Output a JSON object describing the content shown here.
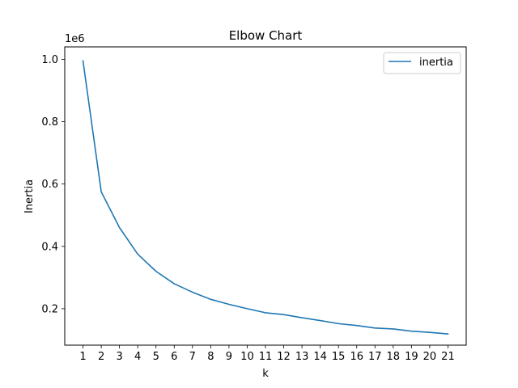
{
  "chart_data": {
    "type": "line",
    "title": "Elbow Chart",
    "xlabel": "k",
    "ylabel": "Inertia",
    "y_offset_label": "1e6",
    "x": [
      1,
      2,
      3,
      4,
      5,
      6,
      7,
      8,
      9,
      10,
      11,
      12,
      13,
      14,
      15,
      16,
      17,
      18,
      19,
      20,
      21
    ],
    "x_tick_labels": [
      "1",
      "2",
      "3",
      "4",
      "5",
      "6",
      "7",
      "8",
      "9",
      "10",
      "11",
      "12",
      "13",
      "14",
      "15",
      "16",
      "17",
      "18",
      "19",
      "20",
      "21"
    ],
    "y_ticks": [
      0.2,
      0.4,
      0.6,
      0.8,
      1.0
    ],
    "y_tick_labels": [
      "0.2",
      "0.4",
      "0.6",
      "0.8",
      "1.0"
    ],
    "ylim": [
      0.083,
      1.04
    ],
    "xlim": [
      0,
      22
    ],
    "series": [
      {
        "name": "inertia",
        "color": "#1f77b4",
        "values": [
          0.995,
          0.575,
          0.46,
          0.375,
          0.32,
          0.28,
          0.253,
          0.23,
          0.214,
          0.2,
          0.187,
          0.181,
          0.171,
          0.162,
          0.152,
          0.146,
          0.138,
          0.135,
          0.128,
          0.124,
          0.119
        ]
      }
    ],
    "legend_position": "top-right",
    "grid": false
  }
}
